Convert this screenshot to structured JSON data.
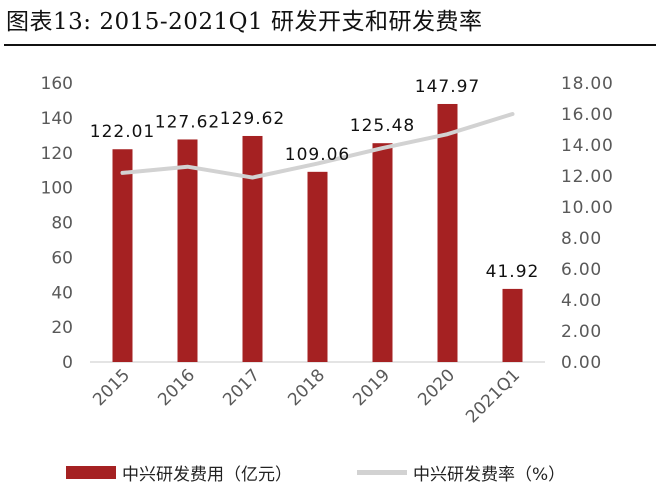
{
  "title": "图表13: 2015-2021Q1 研发开支和研发费率",
  "chart_data": {
    "type": "bar",
    "categories": [
      "2015",
      "2016",
      "2017",
      "2018",
      "2019",
      "2020",
      "2021Q1"
    ],
    "series": [
      {
        "name": "中兴研发费用（亿元）",
        "type": "bar",
        "axis": "left",
        "values": [
          122.01,
          127.62,
          129.62,
          109.06,
          125.48,
          147.97,
          41.92
        ],
        "labels": [
          "122.01",
          "127.62",
          "129.62",
          "109.06",
          "125.48",
          "147.97",
          "41.92"
        ],
        "color": "#a52122"
      },
      {
        "name": "中兴研发费率（%）",
        "type": "line",
        "axis": "right",
        "values": [
          12.2,
          12.6,
          11.9,
          12.8,
          13.8,
          14.7,
          16.0
        ],
        "color": "#d2d2d2"
      }
    ],
    "y_left": {
      "min": 0,
      "max": 160,
      "ticks": [
        "0",
        "20",
        "40",
        "60",
        "80",
        "100",
        "120",
        "140",
        "160"
      ]
    },
    "y_right": {
      "min": 0,
      "max": 18,
      "ticks": [
        "0.00",
        "2.00",
        "4.00",
        "6.00",
        "8.00",
        "10.00",
        "12.00",
        "14.00",
        "16.00",
        "18.00"
      ]
    },
    "grid": false,
    "legend_position": "bottom"
  }
}
